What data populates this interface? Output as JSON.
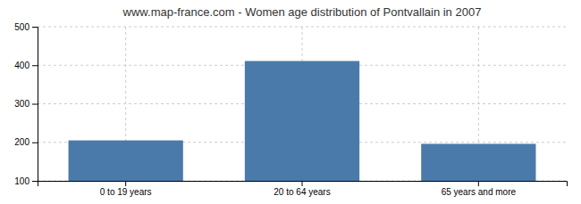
{
  "chart_data": {
    "type": "bar",
    "title": "www.map-france.com - Women age distribution of Pontvallain in 2007",
    "categories": [
      "0 to 19 years",
      "20 to 64 years",
      "65 years and more"
    ],
    "values": [
      205,
      411,
      196
    ],
    "color": "#4a7aaa",
    "ylim": [
      100,
      500
    ],
    "yticks": [
      100,
      200,
      300,
      400,
      500
    ],
    "grid": true
  }
}
